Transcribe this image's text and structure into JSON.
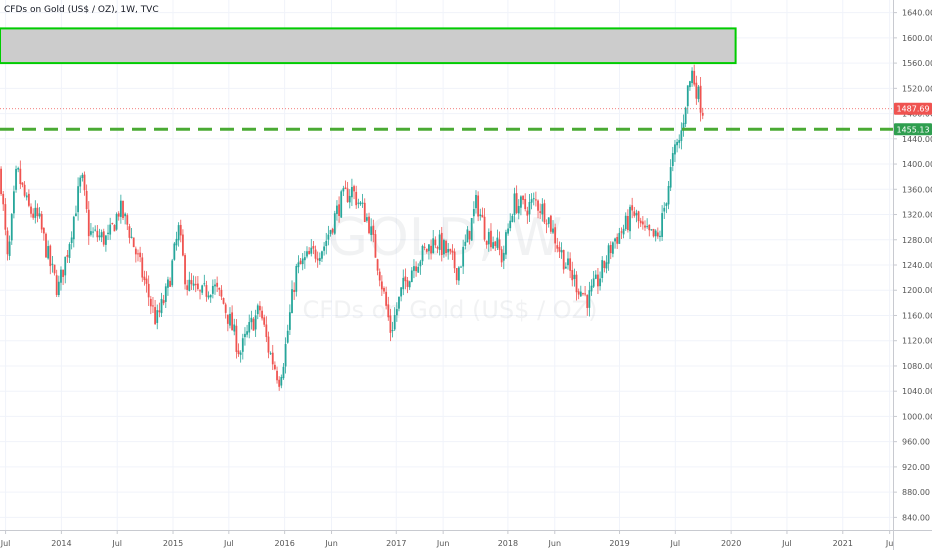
{
  "chart_data": {
    "type": "candlestick",
    "title": "CFDs on Gold (US$ / OZ), 1W, TVC",
    "watermark": {
      "symbol": "GOLD, W",
      "description": "CFDs on Gold (US$ / OZ)"
    },
    "ylim": [
      820,
      1660
    ],
    "y_ticks": [
      840,
      880,
      920,
      960,
      1000,
      1040,
      1080,
      1120,
      1160,
      1200,
      1240,
      1280,
      1320,
      1360,
      1400,
      1440,
      1480,
      1520,
      1560,
      1600,
      1640
    ],
    "y_tick_labels": [
      "840.00",
      "880.00",
      "920.00",
      "960.00",
      "1000.00",
      "1040.00",
      "1080.00",
      "1120.00",
      "1160.00",
      "1200.00",
      "1240.00",
      "1280.00",
      "1320.00",
      "1360.00",
      "1400.00",
      "1440.00",
      "1480.00",
      "1520.00",
      "1560.00",
      "1600.00",
      "1640.00"
    ],
    "x_ticks": [
      {
        "label": "Jul",
        "t": 2013.5
      },
      {
        "label": "2014",
        "t": 2014.0
      },
      {
        "label": "Jul",
        "t": 2014.5
      },
      {
        "label": "2015",
        "t": 2015.0
      },
      {
        "label": "Jul",
        "t": 2015.5
      },
      {
        "label": "2016",
        "t": 2016.0
      },
      {
        "label": "Jun",
        "t": 2016.42
      },
      {
        "label": "2017",
        "t": 2017.0
      },
      {
        "label": "Jun",
        "t": 2017.42
      },
      {
        "label": "2018",
        "t": 2018.0
      },
      {
        "label": "Jun",
        "t": 2018.42
      },
      {
        "label": "2019",
        "t": 2019.0
      },
      {
        "label": "Jul",
        "t": 2019.5
      },
      {
        "label": "2020",
        "t": 2020.0
      },
      {
        "label": "Jul",
        "t": 2020.5
      },
      {
        "label": "2021",
        "t": 2021.0
      },
      {
        "label": "Ju",
        "t": 2021.42
      }
    ],
    "xlim": [
      2013.45,
      2021.45
    ],
    "price_path": [
      [
        2013.45,
        1390
      ],
      [
        2013.52,
        1240
      ],
      [
        2013.6,
        1390
      ],
      [
        2013.7,
        1330
      ],
      [
        2013.8,
        1310
      ],
      [
        2013.9,
        1240
      ],
      [
        2013.97,
        1200
      ],
      [
        2014.05,
        1260
      ],
      [
        2014.18,
        1380
      ],
      [
        2014.25,
        1290
      ],
      [
        2014.42,
        1280
      ],
      [
        2014.52,
        1330
      ],
      [
        2014.6,
        1300
      ],
      [
        2014.75,
        1210
      ],
      [
        2014.85,
        1150
      ],
      [
        2014.95,
        1200
      ],
      [
        2015.05,
        1295
      ],
      [
        2015.12,
        1210
      ],
      [
        2015.25,
        1190
      ],
      [
        2015.35,
        1210
      ],
      [
        2015.45,
        1180
      ],
      [
        2015.52,
        1145
      ],
      [
        2015.6,
        1100
      ],
      [
        2015.7,
        1145
      ],
      [
        2015.78,
        1170
      ],
      [
        2015.85,
        1110
      ],
      [
        2015.95,
        1060
      ],
      [
        2016.0,
        1100
      ],
      [
        2016.1,
        1230
      ],
      [
        2016.2,
        1250
      ],
      [
        2016.35,
        1270
      ],
      [
        2016.5,
        1340
      ],
      [
        2016.6,
        1360
      ],
      [
        2016.75,
        1310
      ],
      [
        2016.85,
        1230
      ],
      [
        2016.95,
        1135
      ],
      [
        2017.05,
        1200
      ],
      [
        2017.15,
        1240
      ],
      [
        2017.25,
        1260
      ],
      [
        2017.35,
        1280
      ],
      [
        2017.45,
        1260
      ],
      [
        2017.55,
        1230
      ],
      [
        2017.65,
        1290
      ],
      [
        2017.72,
        1340
      ],
      [
        2017.8,
        1290
      ],
      [
        2017.88,
        1280
      ],
      [
        2017.95,
        1250
      ],
      [
        2018.05,
        1340
      ],
      [
        2018.15,
        1330
      ],
      [
        2018.25,
        1340
      ],
      [
        2018.35,
        1320
      ],
      [
        2018.45,
        1270
      ],
      [
        2018.55,
        1230
      ],
      [
        2018.65,
        1200
      ],
      [
        2018.72,
        1185
      ],
      [
        2018.82,
        1220
      ],
      [
        2018.95,
        1280
      ],
      [
        2019.05,
        1300
      ],
      [
        2019.12,
        1325
      ],
      [
        2019.22,
        1290
      ],
      [
        2019.35,
        1280
      ],
      [
        2019.42,
        1350
      ],
      [
        2019.48,
        1410
      ],
      [
        2019.55,
        1445
      ],
      [
        2019.6,
        1510
      ],
      [
        2019.65,
        1545
      ],
      [
        2019.72,
        1500
      ],
      [
        2019.75,
        1485
      ]
    ],
    "resistance_zone": {
      "low": 1560,
      "high": 1615,
      "t_start": 2013.45,
      "t_end": 2020.04
    },
    "support_line": {
      "value": 1455.13
    },
    "last_price_line": {
      "value": 1487.69
    },
    "price_labels": [
      {
        "value": 1487.69,
        "text": "1487.69",
        "color": "#ef5350"
      },
      {
        "value": 1455.13,
        "text": "1455.13",
        "color": "#2f9e4f"
      }
    ],
    "colors": {
      "up": "#26a69a",
      "down": "#ef5350",
      "zone_fill": "#cccccc",
      "zone_border": "#00cc00",
      "support": "#4aaa34",
      "grid": "#f0f3fa",
      "axis_text": "#555555",
      "watermark": "rgba(120,123,134,0.10)"
    }
  }
}
